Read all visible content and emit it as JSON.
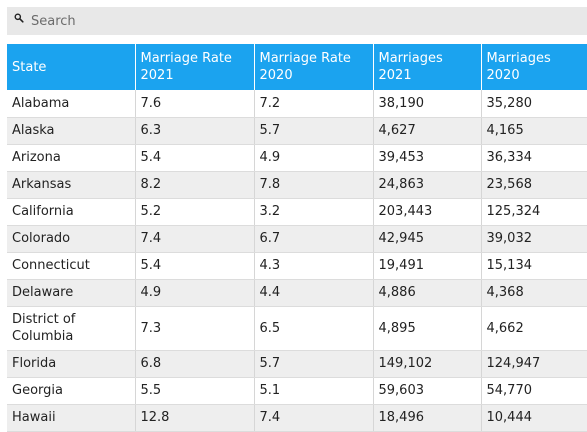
{
  "search": {
    "placeholder": "Search",
    "icon": "search-icon"
  },
  "table": {
    "columns": [
      "State",
      "Marriage Rate 2021",
      "Marriage Rate 2020",
      "Marriages 2021",
      "Marriages 2020"
    ],
    "rows": [
      [
        "Alabama",
        "7.6",
        "7.2",
        "38,190",
        "35,280"
      ],
      [
        "Alaska",
        "6.3",
        "5.7",
        "4,627",
        "4,165"
      ],
      [
        "Arizona",
        "5.4",
        "4.9",
        "39,453",
        "36,334"
      ],
      [
        "Arkansas",
        "8.2",
        "7.8",
        "24,863",
        "23,568"
      ],
      [
        "California",
        "5.2",
        "3.2",
        "203,443",
        "125,324"
      ],
      [
        "Colorado",
        "7.4",
        "6.7",
        "42,945",
        "39,032"
      ],
      [
        "Connecticut",
        "5.4",
        "4.3",
        "19,491",
        "15,134"
      ],
      [
        "Delaware",
        "4.9",
        "4.4",
        "4,886",
        "4,368"
      ],
      [
        "District of Columbia",
        "7.3",
        "6.5",
        "4,895",
        "4,662"
      ],
      [
        "Florida",
        "6.8",
        "5.7",
        "149,102",
        "124,947"
      ],
      [
        "Georgia",
        "5.5",
        "5.1",
        "59,603",
        "54,770"
      ],
      [
        "Hawaii",
        "12.8",
        "7.4",
        "18,496",
        "10,444"
      ]
    ]
  },
  "colors": {
    "header_bg": "#1ba3ef",
    "header_text": "#ffffff",
    "stripe": "#eeeeee",
    "search_bg": "#e8e8e8"
  }
}
